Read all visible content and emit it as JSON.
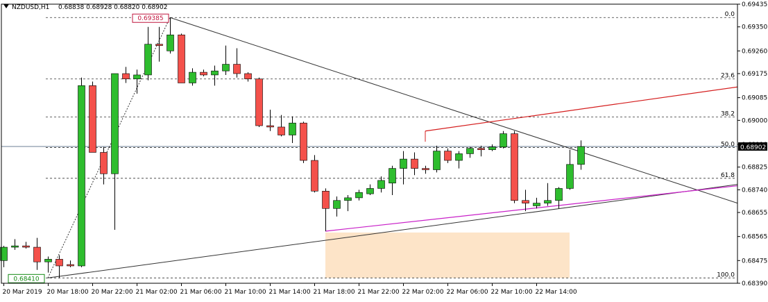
{
  "header": {
    "symbol": "NZDUSD,H1",
    "ohlc": "0.68838 0.68928 0.68820 0.68902"
  },
  "colors": {
    "bull": "#2ebd2e",
    "bear": "#f4514b",
    "trendline": "#333333",
    "channel_upper": "#d41c1c",
    "channel_lower": "#c81fc8",
    "zone": "#fde4c8",
    "grid": "#333333",
    "current_price_line": "#6e7f94",
    "current_price_label_bg": "#000000",
    "high_label": "#c0143c",
    "low_label": "#138a13"
  },
  "chart_data": {
    "type": "candlestick",
    "title": "",
    "xlabel": "",
    "ylabel": "",
    "ylim": [
      0.6839,
      0.69435
    ],
    "y_ticks": [
      "0.69435",
      "0.69350",
      "0.69260",
      "0.69175",
      "0.69085",
      "0.69000",
      "0.68910",
      "0.68825",
      "0.68740",
      "0.68655",
      "0.68565",
      "0.68475",
      "0.68390"
    ],
    "x_ticks": [
      "20 Mar 2019",
      "20 Mar 18:00",
      "20 Mar 22:00",
      "21 Mar 02:00",
      "21 Mar 06:00",
      "21 Mar 10:00",
      "21 Mar 14:00",
      "21 Mar 18:00",
      "21 Mar 22:00",
      "22 Mar 02:00",
      "22 Mar 06:00",
      "22 Mar 10:00",
      "22 Mar 14:00"
    ],
    "current_price": "0.68902",
    "high_label": "0.69385",
    "low_label": "0.68410",
    "fibonacci": {
      "levels": [
        {
          "label": "0.0",
          "price": 0.69385
        },
        {
          "label": "23.6",
          "price": 0.69155
        },
        {
          "label": "38.2",
          "price": 0.69013
        },
        {
          "label": "50.0",
          "price": 0.68898
        },
        {
          "label": "61.8",
          "price": 0.68783
        },
        {
          "label": "100.0",
          "price": 0.6841
        }
      ]
    },
    "candles": [
      {
        "o": 0.68475,
        "h": 0.6853,
        "l": 0.6845,
        "c": 0.68525
      },
      {
        "o": 0.68525,
        "h": 0.68555,
        "l": 0.68515,
        "c": 0.6853
      },
      {
        "o": 0.6853,
        "h": 0.68545,
        "l": 0.6852,
        "c": 0.68525
      },
      {
        "o": 0.68525,
        "h": 0.6856,
        "l": 0.6844,
        "c": 0.6847
      },
      {
        "o": 0.6847,
        "h": 0.6849,
        "l": 0.6843,
        "c": 0.6848
      },
      {
        "o": 0.6848,
        "h": 0.68495,
        "l": 0.6841,
        "c": 0.68455
      },
      {
        "o": 0.6846,
        "h": 0.68475,
        "l": 0.6845,
        "c": 0.68455
      },
      {
        "o": 0.68455,
        "h": 0.6916,
        "l": 0.6845,
        "c": 0.6913
      },
      {
        "o": 0.6913,
        "h": 0.69145,
        "l": 0.6888,
        "c": 0.6888
      },
      {
        "o": 0.6888,
        "h": 0.689,
        "l": 0.6876,
        "c": 0.688
      },
      {
        "o": 0.688,
        "h": 0.69175,
        "l": 0.6859,
        "c": 0.69175
      },
      {
        "o": 0.69175,
        "h": 0.692,
        "l": 0.6914,
        "c": 0.69155
      },
      {
        "o": 0.69155,
        "h": 0.6919,
        "l": 0.691,
        "c": 0.6917
      },
      {
        "o": 0.6917,
        "h": 0.6935,
        "l": 0.6915,
        "c": 0.69285
      },
      {
        "o": 0.69285,
        "h": 0.6935,
        "l": 0.6922,
        "c": 0.6928
      },
      {
        "o": 0.6926,
        "h": 0.69385,
        "l": 0.6925,
        "c": 0.6932
      },
      {
        "o": 0.6932,
        "h": 0.69325,
        "l": 0.6914,
        "c": 0.6914
      },
      {
        "o": 0.6914,
        "h": 0.69195,
        "l": 0.6913,
        "c": 0.6918
      },
      {
        "o": 0.6918,
        "h": 0.6919,
        "l": 0.69165,
        "c": 0.6917
      },
      {
        "o": 0.6917,
        "h": 0.69205,
        "l": 0.6913,
        "c": 0.69185
      },
      {
        "o": 0.69185,
        "h": 0.6928,
        "l": 0.6917,
        "c": 0.6921
      },
      {
        "o": 0.6921,
        "h": 0.6927,
        "l": 0.6916,
        "c": 0.69175
      },
      {
        "o": 0.69175,
        "h": 0.6918,
        "l": 0.69145,
        "c": 0.69155
      },
      {
        "o": 0.69155,
        "h": 0.6916,
        "l": 0.68975,
        "c": 0.6898
      },
      {
        "o": 0.6898,
        "h": 0.6904,
        "l": 0.6896,
        "c": 0.68975
      },
      {
        "o": 0.68975,
        "h": 0.6902,
        "l": 0.6894,
        "c": 0.68945
      },
      {
        "o": 0.68945,
        "h": 0.69015,
        "l": 0.68915,
        "c": 0.6899
      },
      {
        "o": 0.6899,
        "h": 0.68995,
        "l": 0.6884,
        "c": 0.6885
      },
      {
        "o": 0.6885,
        "h": 0.6887,
        "l": 0.6873,
        "c": 0.68735
      },
      {
        "o": 0.68735,
        "h": 0.68745,
        "l": 0.68585,
        "c": 0.6867
      },
      {
        "o": 0.6867,
        "h": 0.68715,
        "l": 0.6864,
        "c": 0.687
      },
      {
        "o": 0.687,
        "h": 0.6872,
        "l": 0.6866,
        "c": 0.6871
      },
      {
        "o": 0.6871,
        "h": 0.6874,
        "l": 0.687,
        "c": 0.6873
      },
      {
        "o": 0.68725,
        "h": 0.6876,
        "l": 0.6872,
        "c": 0.68745
      },
      {
        "o": 0.68745,
        "h": 0.6879,
        "l": 0.6873,
        "c": 0.68775
      },
      {
        "o": 0.68765,
        "h": 0.6883,
        "l": 0.6872,
        "c": 0.6882
      },
      {
        "o": 0.6882,
        "h": 0.68885,
        "l": 0.6876,
        "c": 0.68855
      },
      {
        "o": 0.68855,
        "h": 0.6888,
        "l": 0.68795,
        "c": 0.6882
      },
      {
        "o": 0.6882,
        "h": 0.6883,
        "l": 0.688,
        "c": 0.68815
      },
      {
        "o": 0.68815,
        "h": 0.68905,
        "l": 0.68805,
        "c": 0.68885
      },
      {
        "o": 0.68885,
        "h": 0.68895,
        "l": 0.6884,
        "c": 0.6885
      },
      {
        "o": 0.6885,
        "h": 0.68885,
        "l": 0.6882,
        "c": 0.68875
      },
      {
        "o": 0.68875,
        "h": 0.689,
        "l": 0.6886,
        "c": 0.68895
      },
      {
        "o": 0.68895,
        "h": 0.68905,
        "l": 0.68865,
        "c": 0.6889
      },
      {
        "o": 0.6889,
        "h": 0.6891,
        "l": 0.68885,
        "c": 0.689
      },
      {
        "o": 0.689,
        "h": 0.6896,
        "l": 0.68895,
        "c": 0.6895
      },
      {
        "o": 0.6895,
        "h": 0.6896,
        "l": 0.6869,
        "c": 0.687
      },
      {
        "o": 0.687,
        "h": 0.6874,
        "l": 0.6866,
        "c": 0.6869
      },
      {
        "o": 0.6868,
        "h": 0.6871,
        "l": 0.6867,
        "c": 0.6869
      },
      {
        "o": 0.6869,
        "h": 0.68765,
        "l": 0.6868,
        "c": 0.687
      },
      {
        "o": 0.687,
        "h": 0.6875,
        "l": 0.6867,
        "c": 0.68745
      },
      {
        "o": 0.68745,
        "h": 0.6889,
        "l": 0.6874,
        "c": 0.68835
      },
      {
        "o": 0.68835,
        "h": 0.68925,
        "l": 0.68815,
        "c": 0.68902
      }
    ]
  }
}
